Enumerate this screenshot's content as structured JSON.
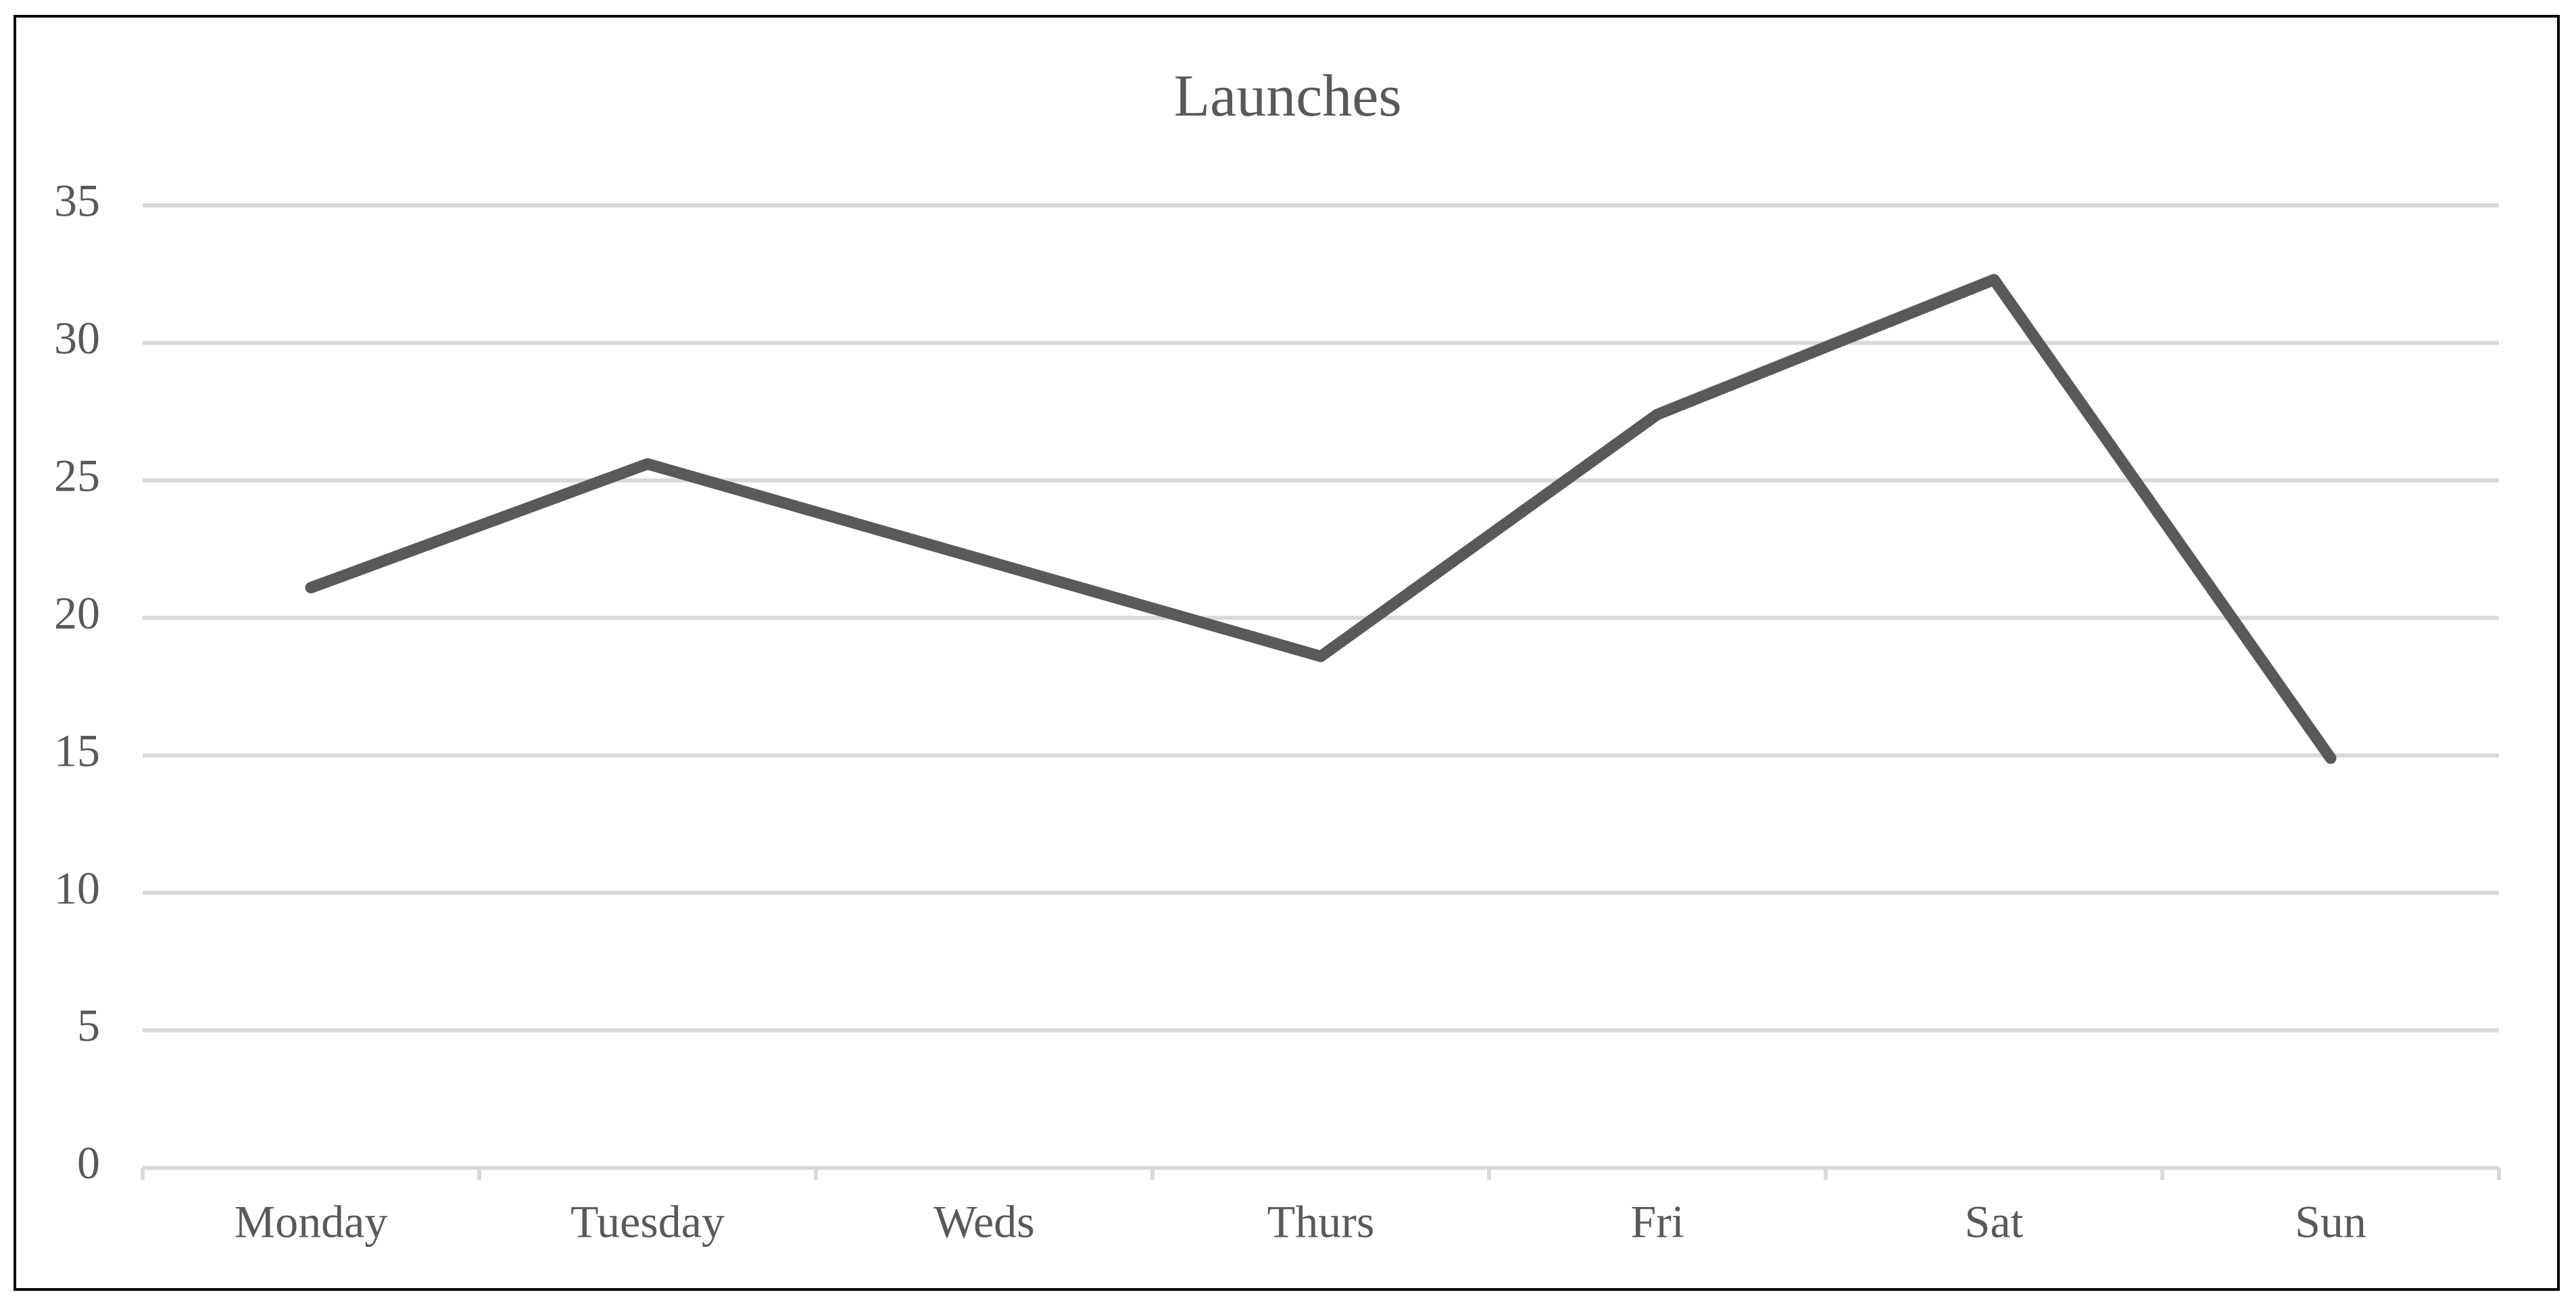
{
  "chart_data": {
    "type": "line",
    "title": "Launches",
    "categories": [
      "Monday",
      "Tuesday",
      "Weds",
      "Thurs",
      "Fri",
      "Sat",
      "Sun"
    ],
    "values": [
      21.1,
      25.6,
      22.1,
      18.6,
      27.4,
      32.3,
      14.9
    ],
    "color": "#595959",
    "ylim": [
      0,
      35
    ],
    "yticks": [
      0,
      5,
      10,
      15,
      20,
      25,
      30,
      35
    ],
    "grid": true
  }
}
